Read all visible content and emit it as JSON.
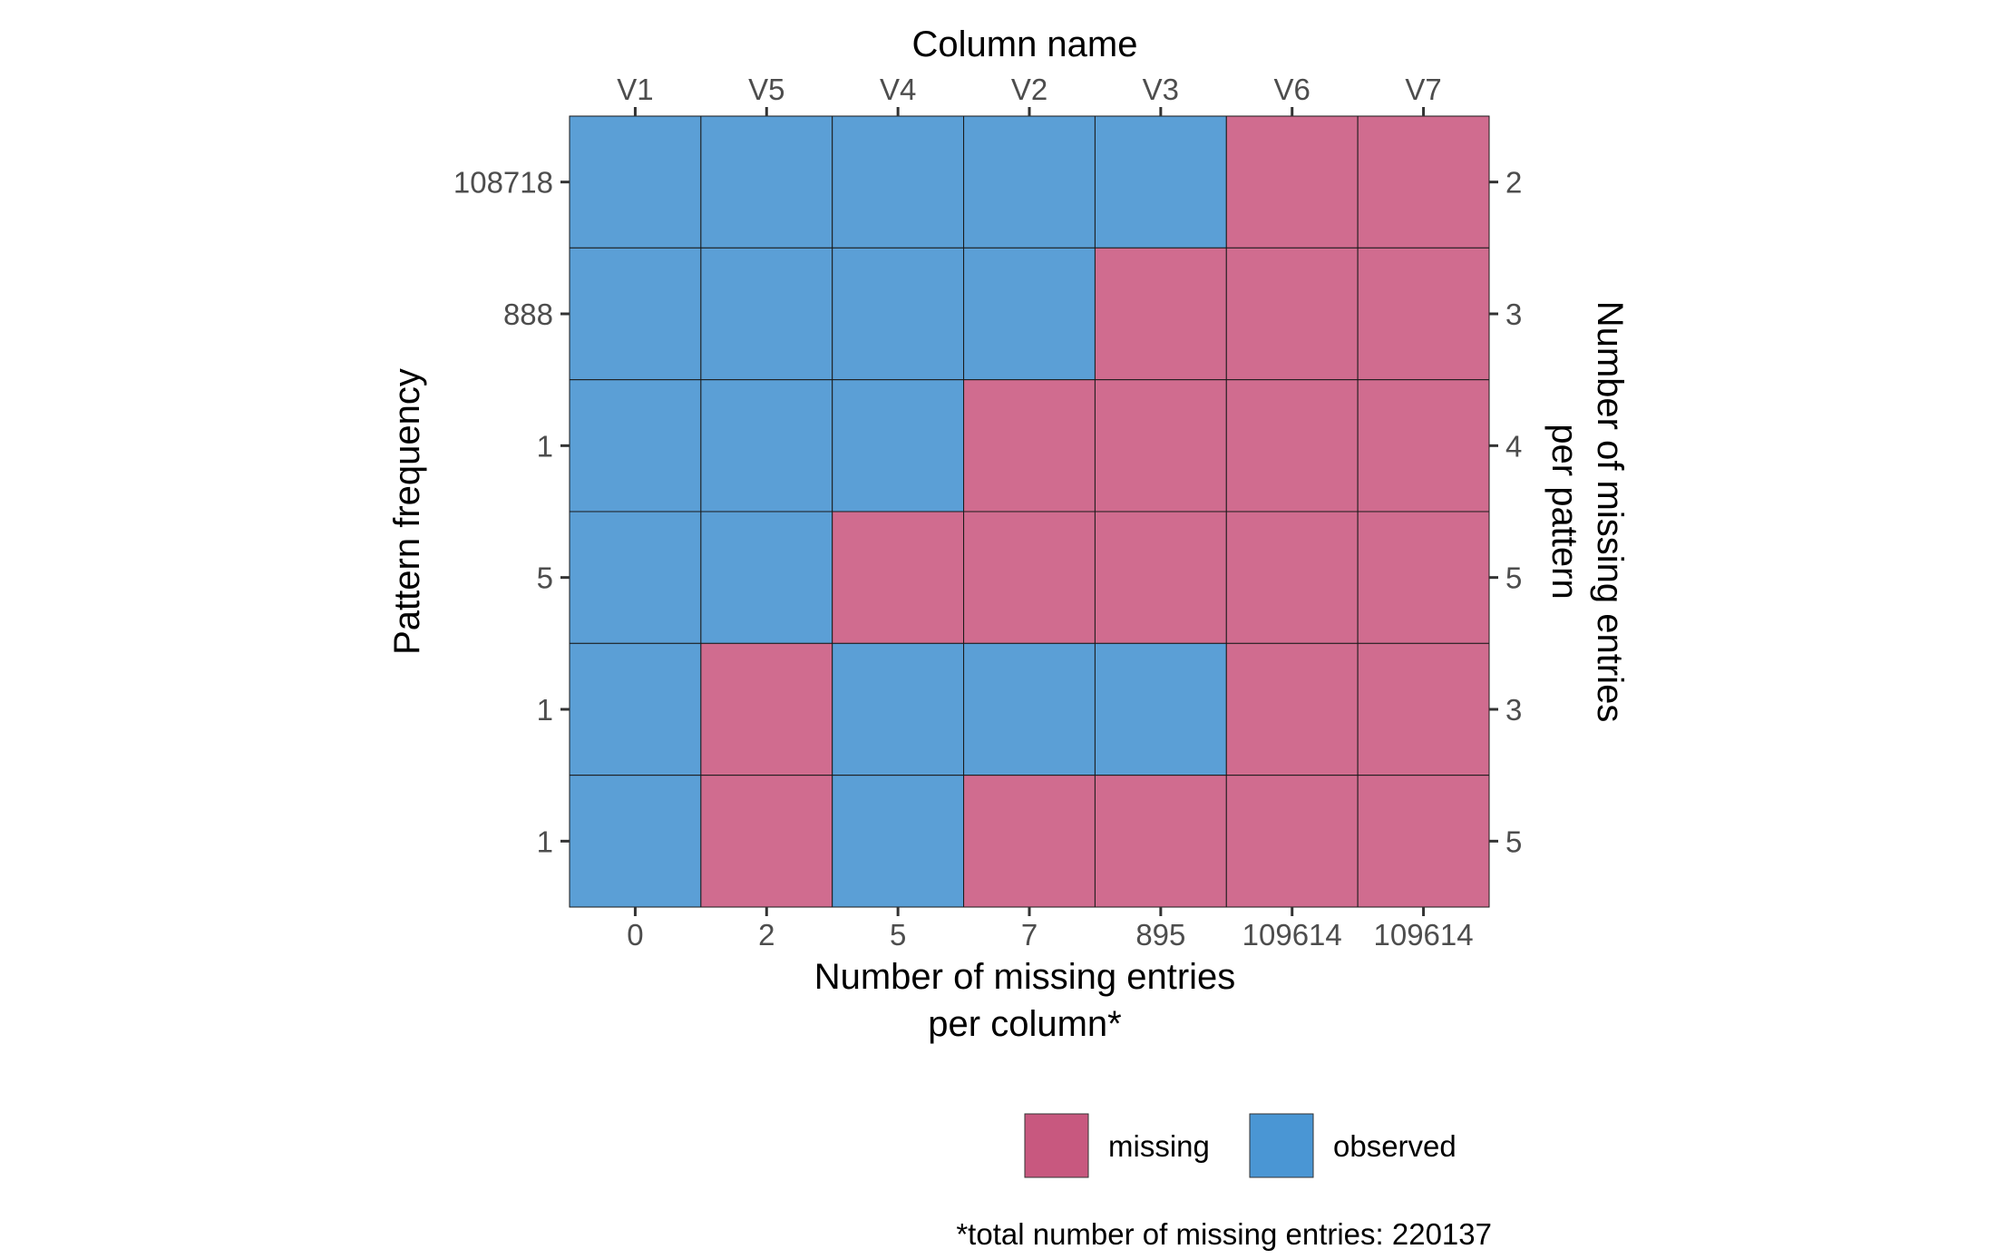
{
  "chart_data": {
    "type": "heatmap",
    "top_axis_title": "Column name",
    "columns": [
      "V1",
      "V5",
      "V4",
      "V2",
      "V3",
      "V6",
      "V7"
    ],
    "bottom_axis_title": [
      "Number of missing entries",
      "per column*"
    ],
    "missing_per_column": [
      "0",
      "2",
      "5",
      "7",
      "895",
      "109614",
      "109614"
    ],
    "left_axis_title": "Pattern frequency",
    "pattern_frequency": [
      "108718",
      "888",
      "1",
      "5",
      "1",
      "1"
    ],
    "right_axis_title": [
      "Number of missing entries",
      "per pattern"
    ],
    "missing_per_pattern": [
      "2",
      "3",
      "4",
      "5",
      "3",
      "5"
    ],
    "patterns": [
      [
        "observed",
        "observed",
        "observed",
        "observed",
        "observed",
        "missing",
        "missing"
      ],
      [
        "observed",
        "observed",
        "observed",
        "observed",
        "missing",
        "missing",
        "missing"
      ],
      [
        "observed",
        "observed",
        "observed",
        "missing",
        "missing",
        "missing",
        "missing"
      ],
      [
        "observed",
        "observed",
        "missing",
        "missing",
        "missing",
        "missing",
        "missing"
      ],
      [
        "observed",
        "missing",
        "observed",
        "observed",
        "observed",
        "missing",
        "missing"
      ],
      [
        "observed",
        "missing",
        "observed",
        "missing",
        "missing",
        "missing",
        "missing"
      ]
    ],
    "legend": [
      {
        "label": "missing",
        "color": "#c8587f"
      },
      {
        "label": "observed",
        "color": "#4a96d4"
      }
    ],
    "caption": "*total number of missing entries: 220137",
    "colors": {
      "missing_cell": "#d06c8f",
      "observed_cell": "#5b9fd6",
      "grid_line": "#1a1a1a",
      "tick": "#333333"
    }
  }
}
